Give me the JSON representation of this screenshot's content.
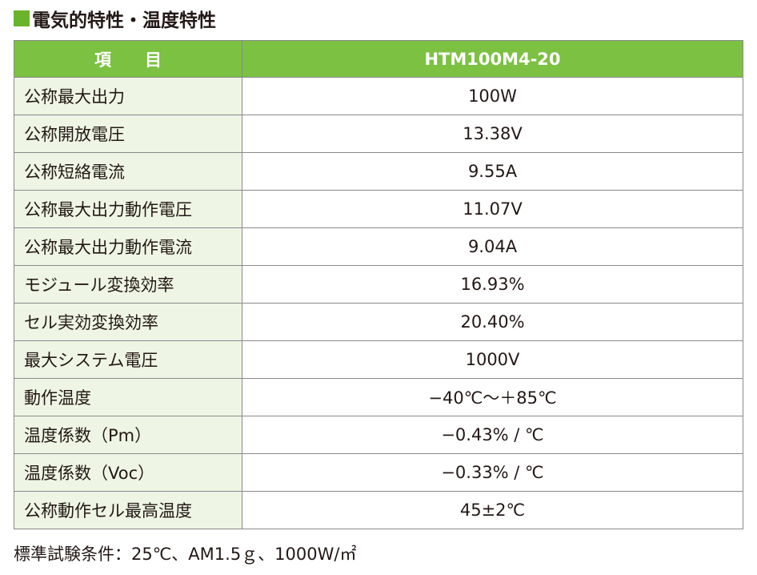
{
  "header": {
    "title": "電気的特性・温度特性"
  },
  "table": {
    "columns": [
      "項　　目",
      "HTM100M4-20"
    ],
    "rows": [
      [
        "公称最大出力",
        "100W"
      ],
      [
        "公称開放電圧",
        "13.38V"
      ],
      [
        "公称短絡電流",
        "9.55A"
      ],
      [
        "公称最大出力動作電圧",
        "11.07V"
      ],
      [
        "公称最大出力動作電流",
        "9.04A"
      ],
      [
        "モジュール変換効率",
        "16.93%"
      ],
      [
        "セル実効変換効率",
        "20.40%"
      ],
      [
        "最大システム電圧",
        "1000V"
      ],
      [
        "動作温度",
        "−40℃～＋85℃"
      ],
      [
        "温度係数（Pm）",
        "−0.43% / ℃"
      ],
      [
        "温度係数（Voc）",
        "−0.33% / ℃"
      ],
      [
        "公称動作セル最高温度",
        "45±2℃"
      ]
    ]
  },
  "footnote": "標準試験条件：25℃、AM1.5ｇ、1000W/㎡"
}
